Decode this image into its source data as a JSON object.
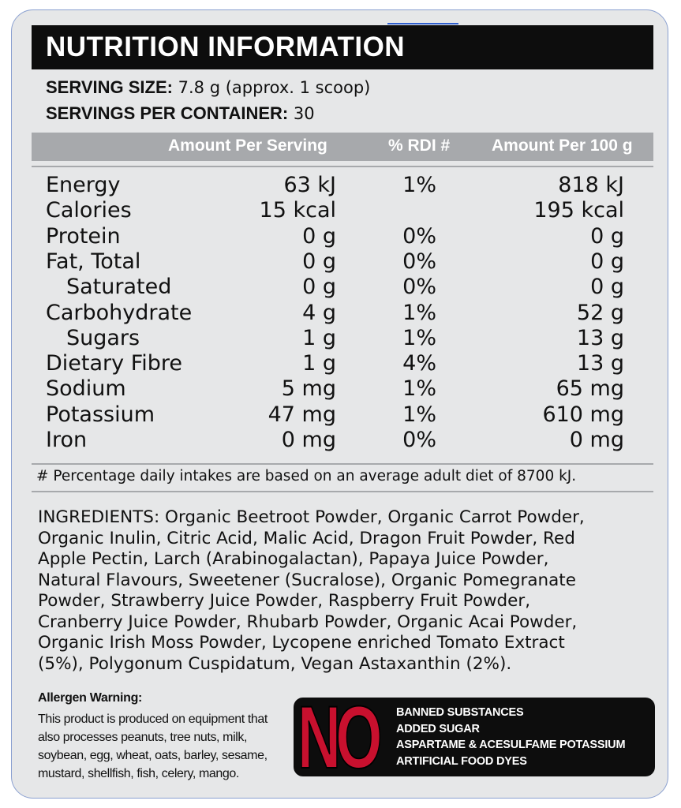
{
  "title": "NUTRITION INFORMATION",
  "serving": {
    "size_label": "SERVING SIZE:",
    "size_value": " 7.8 g (approx. 1 scoop)",
    "per_container_label": "SERVINGS PER CONTAINER:",
    "per_container_value": " 30"
  },
  "columns": {
    "per_serving": "Amount Per Serving",
    "rdi": "% RDI #",
    "per_100g": "Amount Per 100 g"
  },
  "nutrients": [
    {
      "name": "Energy",
      "per_serving": "63 kJ",
      "rdi": "1%",
      "per_100g": "818 kJ"
    },
    {
      "name": "Calories",
      "per_serving": "15 kcal",
      "rdi": "",
      "per_100g": "195 kcal"
    },
    {
      "name": "Protein",
      "per_serving": "0 g",
      "rdi": "0%",
      "per_100g": "0 g"
    },
    {
      "name": "Fat, Total",
      "per_serving": "0 g",
      "rdi": "0%",
      "per_100g": "0 g"
    },
    {
      "name": "Saturated",
      "per_serving": "0 g",
      "rdi": "0%",
      "per_100g": "0 g"
    },
    {
      "name": "Carbohydrate",
      "per_serving": "4 g",
      "rdi": "1%",
      "per_100g": "52 g"
    },
    {
      "name": "Sugars",
      "per_serving": "1 g",
      "rdi": "1%",
      "per_100g": "13 g"
    },
    {
      "name": "Dietary Fibre",
      "per_serving": "1 g",
      "rdi": "4%",
      "per_100g": "13 g"
    },
    {
      "name": "Sodium",
      "per_serving": "5 mg",
      "rdi": "1%",
      "per_100g": "65 mg"
    },
    {
      "name": "Potassium",
      "per_serving": "47 mg",
      "rdi": "1%",
      "per_100g": "610 mg"
    },
    {
      "name": "Iron",
      "per_serving": "0 mg",
      "rdi": "0%",
      "per_100g": "0 mg"
    }
  ],
  "footnote": "# Percentage daily intakes are based on an average adult diet of 8700 kJ.",
  "ingredients_lines": [
    "INGREDIENTS: Organic Beetroot Powder, Organic Carrot Powder,",
    "Organic Inulin, Citric Acid, Malic Acid, Dragon Fruit Powder, Red",
    "Apple Pectin, Larch (Arabinogalactan), Papaya Juice Powder,",
    "Natural Flavours, Sweetener (Sucralose), Organic Pomegranate",
    "Powder, Strawberry Juice Powder, Raspberry Fruit Powder,",
    "Cranberry Juice Powder, Rhubarb Powder, Organic Acai Powder,",
    "Organic Irish Moss Powder, Lycopene enriched Tomato Extract",
    "(5%), Polygonum Cuspidatum, Vegan Astaxanthin (2%)."
  ],
  "allergen": {
    "title": "Allergen Warning:",
    "lines": [
      "This product is produced on equipment that",
      "also processes peanuts, tree nuts, milk,",
      "soybean, egg, wheat, oats, barley, sesame,",
      "mustard, shellfish, fish, celery, mango."
    ]
  },
  "no_badge": {
    "word": "NO",
    "items": [
      "BANNED SUBSTANCES",
      "ADDED SUGAR",
      "ASPARTAME & ACESULFAME POTASSIUM",
      "ARTIFICIAL FOOD DYES"
    ]
  },
  "colors": {
    "panel_bg": "#e6e7e8",
    "title_bg": "#0d0d0d",
    "header_bg": "#a7a9ac",
    "no_red": "#c8102e",
    "panel_border": "#8aa0d0"
  }
}
